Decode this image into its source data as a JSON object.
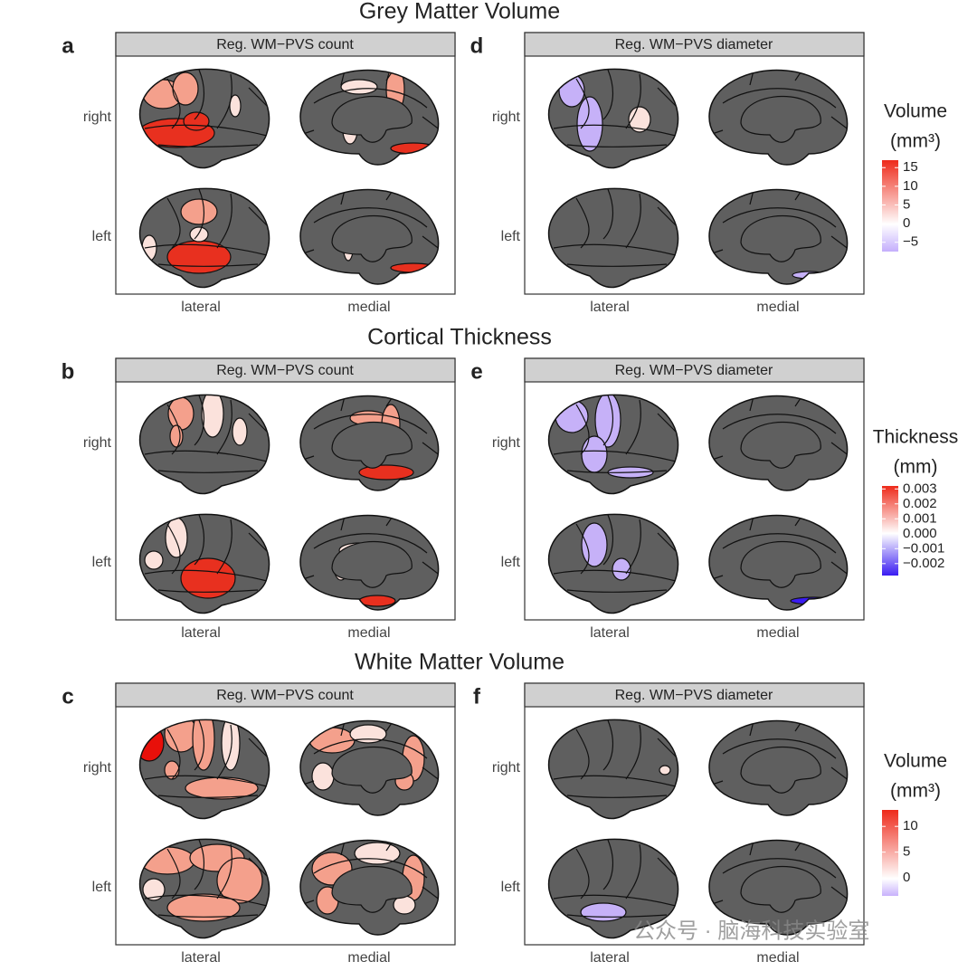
{
  "sections": [
    {
      "title": "Grey Matter Volume",
      "panels": [
        {
          "letter": "a",
          "strip": "Reg. WM−PVS count",
          "rows": [
            "right",
            "left"
          ],
          "cols": [
            "lateral",
            "medial"
          ]
        },
        {
          "letter": "d",
          "strip": "Reg. WM−PVS diameter",
          "rows": [
            "right",
            "left"
          ],
          "cols": [
            "lateral",
            "medial"
          ]
        }
      ],
      "legend": {
        "title": "Volume",
        "unit": "(mm³)",
        "lim": [
          -7.5,
          17
        ],
        "ticks": [
          15,
          10,
          5,
          0,
          {
            "value": -5,
            "label": "−5"
          }
        ]
      }
    },
    {
      "title": "Cortical Thickness",
      "panels": [
        {
          "letter": "b",
          "strip": "Reg. WM−PVS count",
          "rows": [
            "right",
            "left"
          ],
          "cols": [
            "lateral",
            "medial"
          ]
        },
        {
          "letter": "e",
          "strip": "Reg. WM−PVS diameter",
          "rows": [
            "right",
            "left"
          ],
          "cols": [
            "lateral",
            "medial"
          ]
        }
      ],
      "legend": {
        "title": "Thickness",
        "unit": "(mm)",
        "lim": [
          -0.0028,
          0.0032
        ],
        "ticks": [
          0.003,
          0.002,
          0.001,
          {
            "value": 0,
            "label": "0.000"
          },
          {
            "value": -0.001,
            "label": "−0.001"
          },
          {
            "value": -0.002,
            "label": "−0.002"
          }
        ]
      }
    },
    {
      "title": "White Matter Volume",
      "panels": [
        {
          "letter": "c",
          "strip": "Reg. WM−PVS count",
          "rows": [
            "right",
            "left"
          ],
          "cols": [
            "lateral",
            "medial"
          ]
        },
        {
          "letter": "f",
          "strip": "Reg. WM−PVS diameter",
          "rows": [
            "right",
            "left"
          ],
          "cols": [
            "lateral",
            "medial"
          ]
        }
      ],
      "legend": {
        "title": "Volume",
        "unit": "(mm³)",
        "lim": [
          -3.5,
          13.2
        ],
        "ticks": [
          10,
          5,
          0
        ]
      }
    }
  ],
  "watermark": "公众号 · 脑海科技实验室"
}
